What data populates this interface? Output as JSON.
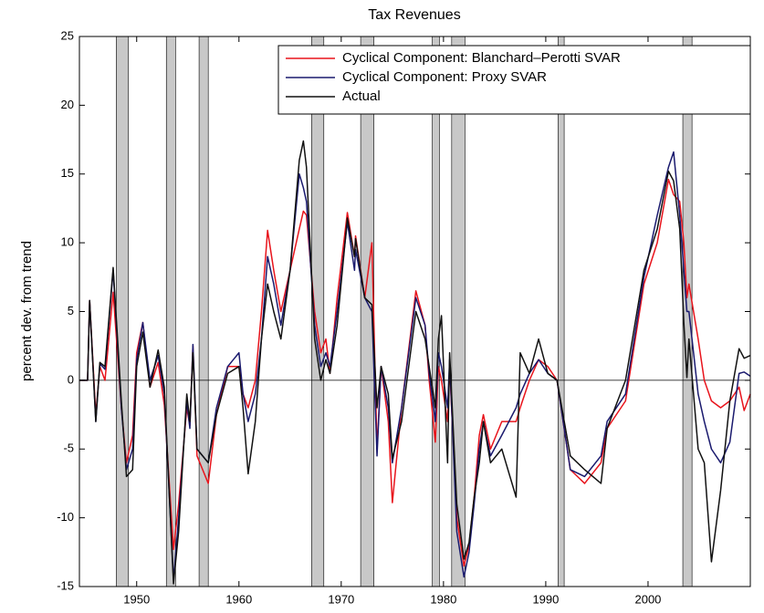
{
  "chart_data": {
    "type": "line",
    "title": "Tax Revenues",
    "ylabel": "percent dev. from trend",
    "xlim": [
      1944.4,
      2010
    ],
    "ylim": [
      -15,
      25
    ],
    "xticks": [
      1950,
      1960,
      1970,
      1980,
      1990,
      2000
    ],
    "yticks": [
      -15,
      -10,
      -5,
      0,
      5,
      10,
      15,
      20,
      25
    ],
    "hline": 0,
    "legend": "upper right",
    "shade_color": "#c8c8c8",
    "shaded_periods": [
      [
        1948.0,
        1949.2
      ],
      [
        1952.9,
        1953.8
      ],
      [
        1956.1,
        1957.0
      ],
      [
        1967.1,
        1968.3
      ],
      [
        1971.9,
        1973.2
      ],
      [
        1978.9,
        1979.6
      ],
      [
        1980.8,
        1982.1
      ],
      [
        1991.2,
        1991.8
      ],
      [
        2003.4,
        2004.3
      ]
    ],
    "x": [
      1944.4,
      1945.2,
      1945.4,
      1946.0,
      1946.4,
      1946.9,
      1947.7,
      1948.5,
      1949.0,
      1949.6,
      1950.0,
      1950.6,
      1951.3,
      1952.1,
      1952.7,
      1953.6,
      1954.1,
      1954.9,
      1955.2,
      1955.5,
      1955.9,
      1957.0,
      1957.8,
      1958.9,
      1960.0,
      1960.4,
      1960.9,
      1961.6,
      1962.2,
      1962.8,
      1963.4,
      1964.1,
      1965.0,
      1965.9,
      1966.3,
      1966.6,
      1967.4,
      1968.0,
      1968.5,
      1968.9,
      1969.6,
      1970.6,
      1971.3,
      1971.4,
      1972.3,
      1973.0,
      1973.5,
      1973.9,
      1974.6,
      1975.0,
      1975.9,
      1977.3,
      1978.2,
      1978.6,
      1979.2,
      1979.5,
      1979.8,
      1980.4,
      1980.6,
      1981.3,
      1982.0,
      1982.5,
      1983.0,
      1983.5,
      1983.9,
      1984.6,
      1985.7,
      1987.1,
      1987.5,
      1988.4,
      1989.3,
      1990.2,
      1991.1,
      1992.4,
      1993.8,
      1995.4,
      1996.0,
      1997.8,
      1999.6,
      2000.9,
      2002.0,
      2002.5,
      2003.1,
      2003.5,
      2003.8,
      2004.0,
      2004.9,
      2005.5,
      2006.2,
      2007.1,
      2008.0,
      2008.9,
      2009.4,
      2010.0
    ],
    "series": [
      {
        "name": "Cyclical Component: Blanchard–Perotti SVAR",
        "color": "#e8141c",
        "values": [
          0,
          0,
          5.8,
          -2.5,
          1,
          0,
          6.4,
          -2,
          -6,
          -4,
          2,
          4.2,
          -0.5,
          1.3,
          -1.8,
          -12.3,
          -9,
          -2,
          -3.3,
          2.5,
          -5.5,
          -7.5,
          -2.5,
          1,
          1,
          -1,
          -2,
          0,
          5,
          10.9,
          8,
          5,
          8,
          11,
          12.3,
          12,
          5,
          2,
          3,
          0.5,
          6,
          12.2,
          9,
          10.5,
          6,
          10,
          -5,
          1,
          -3,
          -8.9,
          -2,
          6.5,
          4,
          0,
          -4.5,
          1,
          0,
          -3,
          1,
          -10,
          -13.5,
          -12,
          -8.5,
          -4,
          -2.5,
          -5,
          -3,
          -3,
          -2,
          0,
          1.5,
          1,
          0,
          -6.5,
          -7.5,
          -6,
          -3.5,
          -1.5,
          7,
          10,
          14.6,
          13.5,
          13,
          10,
          6,
          7,
          3,
          0,
          -1.5,
          -2,
          -1.5,
          -0.5,
          -2.2,
          -1
        ]
      },
      {
        "name": "Cyclical Component: Proxy SVAR",
        "color": "#1a1a6e",
        "values": [
          0,
          0,
          5.8,
          -3,
          1.2,
          0.8,
          8,
          -2,
          -6.5,
          -5,
          1.5,
          4.2,
          0,
          1.8,
          -1,
          -14.5,
          -10,
          -1.5,
          -3.5,
          2.6,
          -5,
          -6,
          -2,
          1,
          2,
          -1,
          -3,
          -1,
          3,
          9,
          7,
          4,
          8,
          15,
          14,
          13,
          4,
          1,
          2,
          1,
          5,
          11.5,
          8,
          9.5,
          6,
          5,
          -5.5,
          1,
          -2,
          -6,
          -2,
          6,
          4,
          0.5,
          -3,
          2,
          1,
          -2,
          1.5,
          -11,
          -14.3,
          -12.5,
          -9,
          -5,
          -3,
          -5.5,
          -4,
          -2,
          -1,
          0.5,
          1.5,
          0.5,
          0,
          -6.5,
          -7,
          -5.5,
          -3,
          -1,
          7.5,
          12,
          15.5,
          16.6,
          12,
          8,
          5,
          5,
          -1,
          -3,
          -5,
          -6,
          -4.5,
          0.5,
          0.6,
          0.3
        ]
      },
      {
        "name": "Actual",
        "color": "#111111",
        "values": [
          0,
          0,
          5.8,
          -3,
          1.3,
          1,
          8.2,
          -1.5,
          -7,
          -6.5,
          1,
          3.5,
          -0.5,
          2.2,
          -0.5,
          -14.8,
          -11,
          -1,
          -3,
          2,
          -5,
          -6,
          -2.5,
          0.5,
          1,
          -2,
          -6.8,
          -3,
          3,
          7,
          5,
          3,
          8,
          16,
          17.4,
          15.5,
          3,
          0,
          1.5,
          0.5,
          4,
          11.8,
          9,
          10.3,
          6,
          5.5,
          -2,
          1,
          -1,
          -5.7,
          -3,
          5,
          3,
          1,
          -2,
          3,
          4.7,
          -6,
          2,
          -9,
          -13,
          -11.8,
          -8.5,
          -6,
          -3,
          -6,
          -5,
          -8.5,
          2,
          0.5,
          3,
          0.5,
          0,
          -5.5,
          -6.5,
          -7.5,
          -3.5,
          0,
          8,
          11,
          15.2,
          14.5,
          11,
          4.2,
          0.2,
          3,
          -5,
          -6,
          -13.2,
          -8,
          -1.5,
          2.3,
          1.6,
          1.8
        ]
      }
    ]
  }
}
